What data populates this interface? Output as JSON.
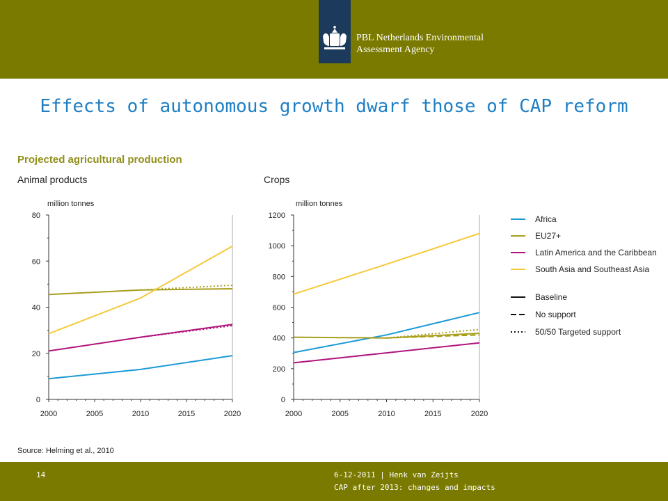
{
  "header": {
    "org_line1": "PBL Netherlands Environmental",
    "org_line2": "Assessment Agency"
  },
  "slide": {
    "title": "Effects of autonomous growth dwarf those of CAP reform"
  },
  "footer": {
    "page": "14",
    "date_author": "6-12-2011 | Henk van Zeijts",
    "subtitle": "CAP after 2013: changes and impacts"
  },
  "colors": {
    "bar": "#7a7a00",
    "title": "#1f7fc4",
    "africa": "#1b9ad6",
    "eu27": "#a89e1c",
    "latam": "#b0137c",
    "asia": "#f5c93a",
    "logo_box": "#1b3a5c"
  },
  "chart_data": {
    "title": "Projected agricultural production",
    "source": "Source: Helming et al., 2010",
    "legend": {
      "regions": [
        "Africa",
        "EU27+",
        "Latin America and the Caribbean",
        "South Asia and Southeast Asia"
      ],
      "scenarios": [
        "Baseline",
        "No support",
        "50/50 Targeted support"
      ]
    },
    "panels": [
      {
        "type": "line",
        "subtitle": "Animal products",
        "ylabel": "million tonnes",
        "ylim": [
          0,
          80
        ],
        "yticks": [
          "0",
          "20",
          "40",
          "60",
          "80"
        ],
        "xlim": [
          2000,
          2020
        ],
        "xticks": [
          "2000",
          "2005",
          "2010",
          "2015",
          "2020"
        ],
        "series": [
          {
            "name": "Africa",
            "scenario": "Baseline",
            "x": [
              2000,
              2010,
              2020
            ],
            "y": [
              9,
              13,
              19
            ]
          },
          {
            "name": "EU27+",
            "scenario": "Baseline",
            "x": [
              2000,
              2010,
              2020
            ],
            "y": [
              45.5,
              47.5,
              48
            ]
          },
          {
            "name": "EU27+",
            "scenario": "50/50 Targeted support",
            "x": [
              2010,
              2020
            ],
            "y": [
              47.5,
              49.5
            ]
          },
          {
            "name": "Latin America and the Caribbean",
            "scenario": "Baseline",
            "x": [
              2000,
              2010,
              2020
            ],
            "y": [
              21,
              27,
              32.5
            ]
          },
          {
            "name": "Latin America and the Caribbean",
            "scenario": "50/50 Targeted support",
            "x": [
              2010,
              2020
            ],
            "y": [
              27,
              32
            ]
          },
          {
            "name": "South Asia and Southeast Asia",
            "scenario": "Baseline",
            "x": [
              2000,
              2010,
              2020
            ],
            "y": [
              28.5,
              44,
              66.5
            ]
          }
        ]
      },
      {
        "type": "line",
        "subtitle": "Crops",
        "ylabel": "million tonnes",
        "ylim": [
          0,
          1200
        ],
        "yticks": [
          "0",
          "200",
          "400",
          "600",
          "800",
          "1000",
          "1200"
        ],
        "xlim": [
          2000,
          2020
        ],
        "xticks": [
          "2000",
          "2005",
          "2010",
          "2015",
          "2020"
        ],
        "series": [
          {
            "name": "Africa",
            "scenario": "Baseline",
            "x": [
              2000,
              2010,
              2020
            ],
            "y": [
              305,
              420,
              565
            ]
          },
          {
            "name": "EU27+",
            "scenario": "Baseline",
            "x": [
              2000,
              2010,
              2020
            ],
            "y": [
              405,
              400,
              430
            ]
          },
          {
            "name": "EU27+",
            "scenario": "No support",
            "x": [
              2010,
              2020
            ],
            "y": [
              400,
              420
            ]
          },
          {
            "name": "EU27+",
            "scenario": "50/50 Targeted support",
            "x": [
              2010,
              2020
            ],
            "y": [
              400,
              455
            ]
          },
          {
            "name": "Latin America and the Caribbean",
            "scenario": "Baseline",
            "x": [
              2000,
              2010,
              2020
            ],
            "y": [
              238,
              303,
              368
            ]
          },
          {
            "name": "South Asia and Southeast Asia",
            "scenario": "Baseline",
            "x": [
              2000,
              2010,
              2020
            ],
            "y": [
              685,
              880,
              1080
            ]
          }
        ]
      }
    ]
  }
}
